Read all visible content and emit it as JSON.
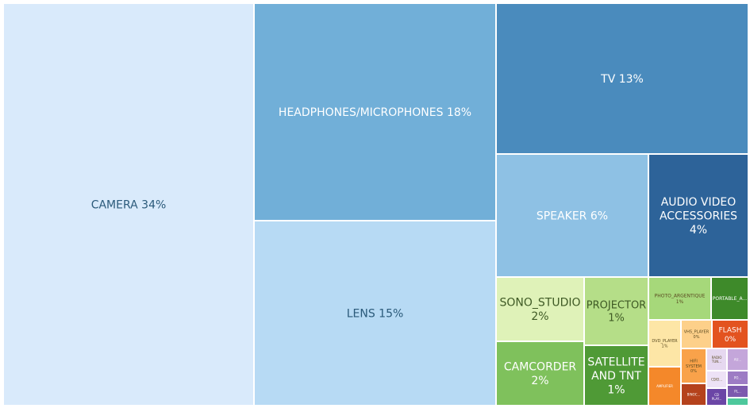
{
  "chart_data": {
    "type": "treemap",
    "value_unit": "%",
    "items": [
      {
        "name": "CAMERA",
        "label": "34%",
        "value": 34,
        "color": "#d9eafb"
      },
      {
        "name": "HEADPHONES/MICROPHONES",
        "label": "18%",
        "value": 18,
        "color": "#71afd8"
      },
      {
        "name": "LENS",
        "label": "15%",
        "value": 15,
        "color": "#b7daf4"
      },
      {
        "name": "TV",
        "label": "13%",
        "value": 13,
        "color": "#4a8bbd"
      },
      {
        "name": "SPEAKER",
        "label": "6%",
        "value": 6,
        "color": "#8ec1e4"
      },
      {
        "name": "AUDIO VIDEO ACCESSORIES",
        "label": "4%",
        "value": 4,
        "color": "#2d6399"
      },
      {
        "name": "SONO_STUDIO",
        "label": "2%",
        "value": 2,
        "color": "#dff2b8"
      },
      {
        "name": "PROJECTOR",
        "label": "1%",
        "value": 1,
        "color": "#b5de88"
      },
      {
        "name": "CAMCORDER",
        "label": "2%",
        "value": 2,
        "color": "#7fc15c"
      },
      {
        "name": "SATELLITE AND TNT",
        "label": "1%",
        "value": 1,
        "color": "#4f9a36"
      },
      {
        "name": "PHOTO_ARGENTIQUE",
        "label": "1%",
        "value": 1,
        "color": "#a6d87a"
      },
      {
        "name": "PORTABLE_A...",
        "label": "",
        "value": 0.6,
        "color": "#3e8a2a"
      },
      {
        "name": "DVD_PLAYER",
        "label": "1%",
        "value": 0.5,
        "color": "#fde6a6"
      },
      {
        "name": "VHS_PLAYER",
        "label": "0%",
        "value": 0.3,
        "color": "#fdd08a"
      },
      {
        "name": "FLASH",
        "label": "0%",
        "value": 0.4,
        "color": "#e3531f"
      },
      {
        "name": "HIFI SYSTEM",
        "label": "0%",
        "value": 0.25,
        "color": "#f9a24a"
      },
      {
        "name": "RADIO TUN...",
        "label": "",
        "value": 0.2,
        "color": "#e6d8f0"
      },
      {
        "name": "AU...",
        "label": "",
        "value": 0.12,
        "color": "#c4a6da"
      },
      {
        "name": "AMPLIFIER",
        "label": "",
        "value": 0.3,
        "color": "#f4882a"
      },
      {
        "name": "BINOC...",
        "label": "",
        "value": 0.15,
        "color": "#b5421c"
      },
      {
        "name": "CD/D...",
        "label": "",
        "value": 0.1,
        "color": "#ede2f6"
      },
      {
        "name": "PO...",
        "label": "",
        "value": 0.08,
        "color": "#9d7cc4"
      },
      {
        "name": "CD PLAY...",
        "label": "",
        "value": 0.08,
        "color": "#6b46a6"
      },
      {
        "name": "PL...",
        "label": "",
        "value": 0.05,
        "color": "#7c5aae"
      },
      {
        "name": "",
        "label": "",
        "value": 0.02,
        "color": "#4ec89c"
      }
    ]
  }
}
